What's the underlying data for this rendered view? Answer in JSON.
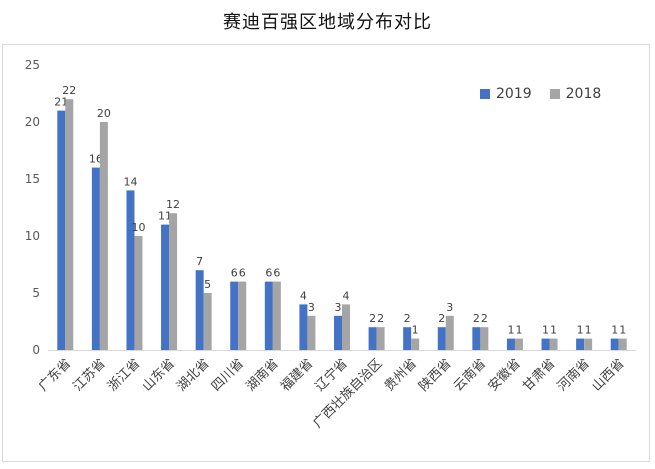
{
  "chart_data": {
    "type": "bar",
    "title": "赛迪百强区地域分布对比",
    "xlabel": "",
    "ylabel": "",
    "ylim": [
      0,
      25
    ],
    "yticks": [
      0,
      5,
      10,
      15,
      20,
      25
    ],
    "grid": false,
    "legend_position": "top-right",
    "categories": [
      "广东省",
      "江苏省",
      "浙江省",
      "山东省",
      "湖北省",
      "四川省",
      "湖南省",
      "福建省",
      "辽宁省",
      "广西壮族自治区",
      "贵州省",
      "陕西省",
      "云南省",
      "安徽省",
      "甘肃省",
      "河南省",
      "山西省"
    ],
    "series": [
      {
        "name": "2019",
        "color": "#4472C4",
        "values": [
          21,
          16,
          14,
          11,
          7,
          6,
          6,
          4,
          3,
          2,
          2,
          2,
          2,
          1,
          1,
          1,
          1
        ]
      },
      {
        "name": "2018",
        "color": "#A5A5A5",
        "values": [
          22,
          20,
          10,
          12,
          5,
          6,
          6,
          3,
          4,
          2,
          1,
          3,
          2,
          1,
          1,
          1,
          1
        ]
      }
    ]
  }
}
